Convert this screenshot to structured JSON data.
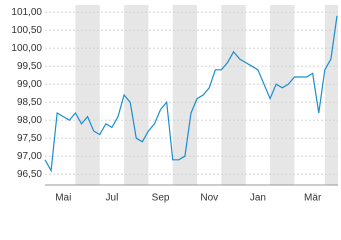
{
  "chart_data": {
    "type": "line",
    "categories": [
      null,
      null,
      null,
      "Mai",
      null,
      null,
      null,
      null,
      null,
      null,
      null,
      "Jul",
      null,
      null,
      null,
      null,
      null,
      null,
      null,
      "Sep",
      null,
      null,
      null,
      null,
      null,
      null,
      null,
      "Nov",
      null,
      null,
      null,
      null,
      null,
      null,
      null,
      "Jan",
      null,
      null,
      null,
      null,
      null,
      null,
      null,
      null,
      "Mär",
      null,
      null,
      null,
      null
    ],
    "series": [
      {
        "color": "#1a8fd0",
        "values": [
          96.9,
          96.6,
          98.2,
          98.1,
          98.0,
          98.2,
          97.9,
          98.1,
          97.7,
          97.6,
          97.9,
          97.8,
          98.1,
          98.7,
          98.5,
          97.5,
          97.4,
          97.7,
          97.9,
          98.3,
          98.5,
          96.9,
          96.9,
          97.0,
          98.2,
          98.6,
          98.7,
          98.9,
          99.4,
          99.4,
          99.6,
          99.9,
          99.7,
          99.6,
          99.5,
          99.4,
          99.0,
          98.6,
          99.0,
          98.9,
          99.0,
          99.2,
          99.2,
          99.2,
          99.3,
          98.2,
          99.4,
          99.7,
          100.9
        ]
      }
    ],
    "ylim": [
      96.2,
      101.2
    ],
    "yticks": [
      {
        "value": 96.5,
        "label": "96,50"
      },
      {
        "value": 97,
        "label": "97,00"
      },
      {
        "value": 97.5,
        "label": "97,50"
      },
      {
        "value": 98,
        "label": "98,00"
      },
      {
        "value": 98.5,
        "label": "98,50"
      },
      {
        "value": 99,
        "label": "99,00"
      },
      {
        "value": 99.5,
        "label": "99,50"
      },
      {
        "value": 100,
        "label": "100,00"
      },
      {
        "value": 100.5,
        "label": "100,50"
      },
      {
        "value": 101,
        "label": "101,00"
      }
    ],
    "grid": true
  }
}
